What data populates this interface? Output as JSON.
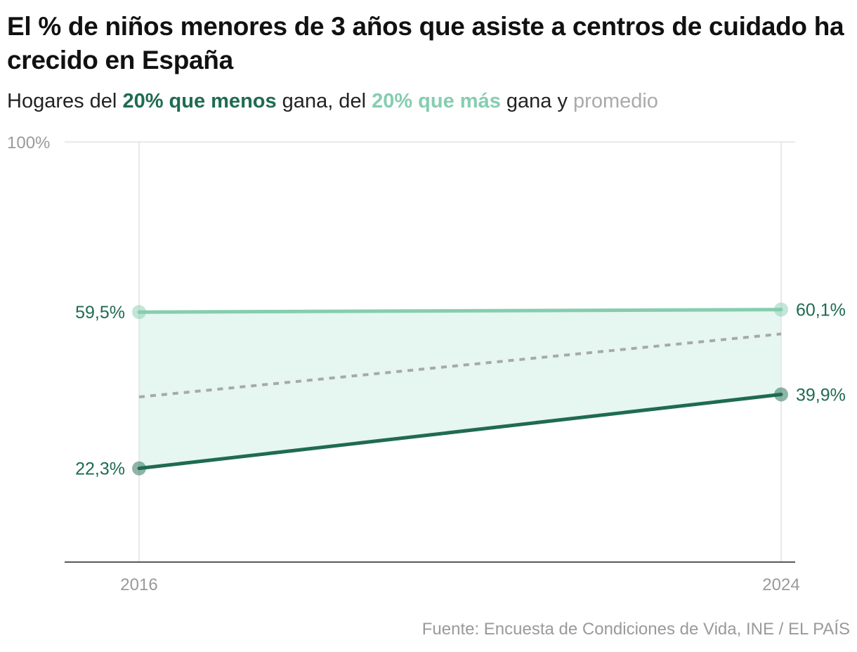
{
  "chart_data": {
    "type": "line",
    "title": "El % de niños menores de 3 años que asiste a centros de cuidado ha crecido en España",
    "subtitle": {
      "prefix": "Hogares del ",
      "low_label": "20% que menos",
      "mid1": " gana, del ",
      "high_label": "20% que más",
      "mid2": " gana y ",
      "avg_label": "promedio"
    },
    "x": [
      "2016",
      "2024"
    ],
    "ylim": [
      0,
      100
    ],
    "y_ticks": [
      {
        "value": 100,
        "label": "100%"
      }
    ],
    "series": [
      {
        "name": "20% que más",
        "values": [
          59.5,
          60.1
        ],
        "labels": [
          "59,5%",
          "60,1%"
        ],
        "color": "#86cdb0"
      },
      {
        "name": "20% que menos",
        "values": [
          22.3,
          39.9
        ],
        "labels": [
          "22,3%",
          "39,9%"
        ],
        "color": "#1f6b51"
      },
      {
        "name": "promedio",
        "values": [
          39.3,
          54.3
        ],
        "color": "#a5aaa8",
        "style": "dashed"
      }
    ],
    "band_color": "#e6f6f0",
    "source": "Fuente: Encuesta de Condiciones de Vida, INE / EL PAÍS"
  }
}
